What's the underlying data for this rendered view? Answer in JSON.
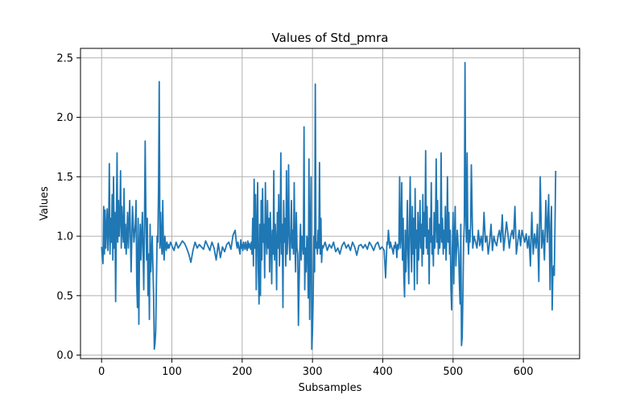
{
  "chart_data": {
    "type": "line",
    "title": "Values of Std_pmra",
    "xlabel": "Subsamples",
    "ylabel": "Values",
    "xlim": [
      -30,
      680
    ],
    "ylim": [
      -0.03,
      2.58
    ],
    "xticks": [
      0,
      100,
      200,
      300,
      400,
      500,
      600
    ],
    "yticks": [
      0.0,
      0.5,
      1.0,
      1.5,
      2.0,
      2.5
    ],
    "xtick_labels": [
      "0",
      "100",
      "200",
      "300",
      "400",
      "500",
      "600"
    ],
    "ytick_labels": [
      "0.0",
      "0.5",
      "1.0",
      "1.5",
      "2.0",
      "2.5"
    ],
    "grid": true,
    "line_color": "#1f77b4",
    "series": [
      {
        "x": [
          0,
          2,
          3,
          4,
          5,
          6,
          8,
          9,
          10,
          11,
          12,
          13,
          14,
          15,
          16,
          17,
          18,
          19,
          20,
          21,
          22,
          23,
          24,
          25,
          26,
          27,
          28,
          29,
          30,
          31,
          32,
          33,
          34,
          35,
          36,
          37,
          38,
          40,
          42,
          44,
          46,
          48,
          49,
          50,
          51,
          52,
          53,
          54,
          55,
          56,
          58,
          60,
          61,
          62,
          63,
          64,
          65,
          66,
          67,
          68,
          69,
          70,
          72,
          74,
          75,
          76,
          77,
          78,
          79,
          80,
          81,
          82,
          83,
          84,
          85,
          86,
          87,
          88,
          89,
          90,
          91,
          92,
          93,
          94,
          95,
          96,
          98,
          100,
          103,
          106,
          109,
          112,
          115,
          118,
          121,
          124,
          127,
          130,
          133,
          136,
          139,
          142,
          145,
          148,
          151,
          154,
          157,
          160,
          163,
          166,
          169,
          172,
          175,
          178,
          181,
          184,
          187,
          190,
          192,
          193,
          194,
          195,
          196,
          197,
          198,
          199,
          200,
          201,
          202,
          203,
          204,
          205,
          206,
          207,
          208,
          209,
          210,
          211,
          212,
          213,
          214,
          215,
          216,
          217,
          218,
          219,
          220,
          221,
          222,
          223,
          224,
          225,
          226,
          227,
          228,
          229,
          230,
          231,
          232,
          233,
          234,
          235,
          236,
          237,
          238,
          239,
          240,
          241,
          242,
          243,
          244,
          245,
          246,
          247,
          248,
          249,
          250,
          251,
          252,
          253,
          254,
          255,
          256,
          257,
          258,
          259,
          260,
          261,
          262,
          263,
          264,
          265,
          266,
          267,
          268,
          269,
          270,
          271,
          272,
          273,
          274,
          275,
          276,
          277,
          278,
          279,
          280,
          281,
          282,
          283,
          284,
          285,
          286,
          287,
          288,
          289,
          290,
          291,
          292,
          293,
          294,
          295,
          296,
          297,
          298,
          299,
          300,
          301,
          302,
          303,
          304,
          305,
          306,
          307,
          308,
          309,
          310,
          311,
          312,
          313,
          314,
          315,
          318,
          321,
          324,
          327,
          330,
          333,
          336,
          339,
          342,
          345,
          348,
          351,
          354,
          357,
          360,
          363,
          366,
          369,
          372,
          375,
          378,
          381,
          384,
          387,
          390,
          393,
          396,
          399,
          402,
          404,
          405,
          406,
          407,
          408,
          409,
          410,
          411,
          412,
          413,
          414,
          415,
          416,
          417,
          418,
          419,
          420,
          421,
          422,
          423,
          424,
          425,
          426,
          427,
          428,
          429,
          430,
          431,
          432,
          433,
          434,
          435,
          436,
          437,
          438,
          439,
          440,
          441,
          442,
          443,
          444,
          445,
          446,
          447,
          448,
          449,
          450,
          451,
          452,
          453,
          454,
          455,
          456,
          457,
          458,
          459,
          460,
          461,
          462,
          463,
          464,
          465,
          466,
          467,
          468,
          469,
          470,
          471,
          472,
          473,
          474,
          475,
          476,
          477,
          478,
          479,
          480,
          481,
          482,
          483,
          484,
          485,
          486,
          487,
          488,
          489,
          490,
          491,
          492,
          493,
          494,
          495,
          496,
          497,
          498,
          499,
          500,
          501,
          502,
          503,
          504,
          505,
          506,
          507,
          508,
          509,
          510,
          511,
          512,
          513,
          514,
          515,
          516,
          517,
          518,
          519,
          520,
          521,
          522,
          523,
          524,
          525,
          526,
          528,
          530,
          532,
          534,
          536,
          538,
          540,
          542,
          544,
          546,
          548,
          550,
          552,
          554,
          556,
          558,
          560,
          562,
          564,
          566,
          568,
          570,
          572,
          574,
          576,
          578,
          580,
          582,
          584,
          586,
          588,
          590,
          592,
          594,
          596,
          598,
          600,
          602,
          604,
          606,
          608,
          610,
          612,
          614,
          616,
          618,
          620,
          622,
          624,
          626,
          628,
          630,
          632,
          634,
          636,
          638,
          639,
          640,
          641,
          642,
          643,
          644,
          645,
          646
        ],
        "y": [
          0.91,
          0.77,
          1.25,
          0.85,
          1.22,
          0.9,
          1.23,
          0.88,
          1.05,
          1.61,
          0.85,
          1.15,
          0.95,
          1.35,
          0.8,
          1.5,
          0.9,
          1.2,
          0.45,
          1.1,
          1.7,
          0.95,
          1.3,
          1.0,
          1.15,
          1.55,
          0.9,
          1.25,
          1.05,
          0.95,
          1.4,
          0.9,
          1.1,
          0.85,
          1.0,
          1.2,
          0.9,
          1.3,
          0.7,
          1.25,
          0.95,
          1.1,
          1.3,
          0.6,
          0.4,
          1.15,
          0.26,
          0.9,
          1.1,
          0.8,
          1.2,
          0.55,
          1.1,
          1.8,
          1.2,
          0.8,
          1.15,
          0.5,
          0.85,
          0.3,
          1.1,
          0.7,
          1.0,
          0.5,
          0.05,
          0.1,
          0.2,
          0.6,
          1.0,
          0.95,
          1.4,
          2.3,
          0.9,
          1.2,
          0.95,
          0.85,
          1.3,
          0.9,
          0.8,
          1.0,
          0.92,
          0.88,
          0.95,
          0.9,
          0.93,
          0.9,
          0.95,
          0.92,
          0.88,
          0.95,
          0.9,
          0.93,
          0.96,
          0.94,
          0.9,
          0.85,
          0.78,
          0.88,
          0.95,
          0.9,
          0.93,
          0.91,
          0.89,
          0.96,
          0.92,
          0.88,
          0.95,
          0.9,
          0.8,
          0.94,
          0.82,
          0.91,
          0.87,
          0.93,
          0.95,
          0.89,
          1.01,
          1.05,
          0.93,
          0.9,
          0.95,
          0.92,
          0.88,
          0.85,
          0.97,
          0.9,
          0.93,
          0.88,
          0.95,
          0.92,
          0.89,
          0.95,
          0.91,
          0.88,
          0.96,
          0.9,
          0.94,
          0.92,
          0.89,
          0.95,
          0.85,
          1.15,
          0.75,
          1.48,
          0.9,
          1.35,
          0.55,
          1.05,
          1.45,
          0.7,
          0.43,
          1.1,
          0.5,
          1.3,
          0.8,
          1.4,
          0.95,
          1.1,
          0.65,
          1.45,
          1.0,
          0.85,
          1.3,
          0.9,
          1.15,
          0.7,
          1.2,
          0.95,
          0.6,
          1.05,
          0.85,
          1.55,
          0.8,
          1.1,
          0.95,
          0.55,
          1.2,
          0.9,
          1.35,
          0.75,
          1.0,
          1.7,
          0.85,
          1.1,
          0.4,
          1.3,
          0.95,
          1.15,
          0.75,
          1.55,
          0.85,
          1.05,
          1.6,
          0.95,
          0.8,
          1.0,
          1.3,
          0.9,
          1.05,
          0.85,
          1.45,
          0.95,
          0.7,
          1.2,
          0.9,
          0.85,
          0.25,
          0.6,
          0.9,
          1.1,
          0.8,
          1.0,
          0.95,
          0.85,
          1.92,
          0.55,
          0.9,
          0.7,
          1.0,
          0.95,
          0.48,
          1.65,
          0.3,
          1.0,
          1.5,
          0.05,
          0.2,
          0.5,
          1.0,
          0.7,
          2.28,
          0.9,
          0.95,
          0.85,
          1.05,
          0.9,
          1.62,
          0.85,
          1.15,
          0.78,
          0.92,
          0.9,
          0.95,
          0.88,
          0.93,
          0.9,
          0.95,
          0.87,
          0.9,
          0.85,
          0.92,
          0.95,
          0.9,
          0.93,
          0.88,
          0.95,
          0.91,
          0.84,
          0.92,
          0.93,
          0.9,
          0.93,
          0.89,
          0.95,
          0.92,
          0.88,
          0.93,
          0.95,
          0.89,
          0.91,
          0.88,
          0.65,
          0.8,
          0.95,
          0.93,
          1.05,
          0.98,
          0.9,
          0.95,
          0.92,
          0.9,
          0.88,
          0.85,
          0.92,
          0.9,
          0.95,
          0.91,
          0.82,
          0.93,
          0.89,
          0.95,
          1.5,
          0.9,
          1.0,
          1.45,
          0.8,
          1.15,
          0.65,
          0.49,
          1.05,
          0.7,
          0.95,
          1.3,
          0.85,
          0.6,
          1.1,
          1.5,
          0.95,
          0.7,
          1.25,
          0.85,
          1.15,
          0.55,
          1.4,
          0.9,
          1.05,
          0.6,
          1.2,
          0.8,
          1.0,
          1.3,
          0.9,
          1.1,
          0.75,
          1.35,
          0.85,
          1.2,
          1.0,
          1.72,
          0.9,
          1.25,
          0.85,
          1.05,
          0.6,
          1.15,
          0.95,
          1.45,
          0.85,
          1.0,
          0.75,
          1.2,
          0.9,
          1.1,
          1.65,
          0.95,
          1.3,
          0.85,
          1.1,
          0.9,
          1.0,
          1.7,
          0.95,
          1.15,
          0.85,
          1.05,
          0.9,
          1.25,
          0.8,
          1.0,
          1.5,
          0.95,
          1.2,
          0.85,
          1.05,
          0.55,
          0.38,
          0.9,
          1.2,
          0.6,
          1.0,
          1.25,
          0.75,
          0.9,
          1.05,
          0.95,
          0.85,
          0.6,
          0.43,
          1.1,
          0.08,
          0.15,
          0.5,
          0.95,
          1.1,
          2.46,
          1.2,
          0.95,
          1.7,
          1.0,
          0.85,
          1.05,
          0.95,
          1.1,
          1.6,
          0.9,
          1.0,
          0.95,
          0.9,
          1.05,
          0.92,
          1.0,
          0.88,
          1.2,
          0.95,
          1.0,
          0.85,
          0.95,
          1.1,
          0.88,
          1.0,
          0.95,
          0.92,
          1.0,
          1.05,
          0.95,
          1.18,
          0.88,
          1.0,
          1.12,
          1.02,
          0.9,
          1.0,
          1.05,
          0.98,
          1.25,
          0.85,
          0.95,
          1.05,
          0.92,
          1.05,
          1.0,
          0.95,
          1.02,
          0.9,
          1.0,
          0.75,
          1.2,
          0.85,
          1.02,
          0.9,
          1.1,
          0.62,
          1.5,
          0.9,
          1.05,
          0.8,
          1.3,
          0.95,
          1.35,
          0.55,
          1.1,
          1.25,
          0.38,
          0.7,
          0.75,
          0.67,
          1.1,
          1.55
        ]
      }
    ]
  }
}
